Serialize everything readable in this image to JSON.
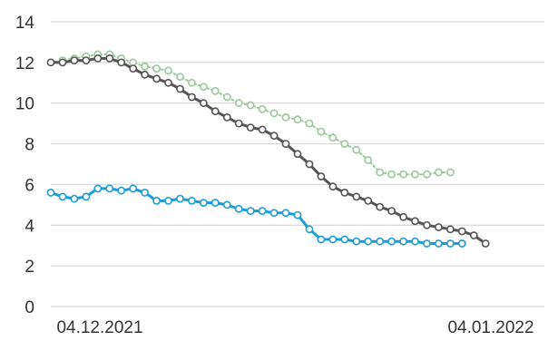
{
  "chart_data": {
    "type": "line",
    "title": "",
    "xlabel": "",
    "ylabel": "",
    "ylim": [
      0,
      14
    ],
    "yticks": [
      "0",
      "2",
      "4",
      "6",
      "8",
      "10",
      "12",
      "14"
    ],
    "xtick_labels": [
      "04.12.2021",
      "04.01.2022"
    ],
    "grid": true,
    "legend": "none",
    "x": [
      "2021-12-04",
      "2021-12-05",
      "2021-12-06",
      "2021-12-07",
      "2021-12-08",
      "2021-12-09",
      "2021-12-10",
      "2021-12-11",
      "2021-12-12",
      "2021-12-13",
      "2021-12-14",
      "2021-12-15",
      "2021-12-16",
      "2021-12-17",
      "2021-12-18",
      "2021-12-19",
      "2021-12-20",
      "2021-12-21",
      "2021-12-22",
      "2021-12-23",
      "2021-12-24",
      "2021-12-25",
      "2021-12-26",
      "2021-12-27",
      "2021-12-28",
      "2021-12-29",
      "2021-12-30",
      "2021-12-31",
      "2022-01-01",
      "2022-01-02",
      "2022-01-03",
      "2022-01-04",
      "2022-01-05",
      "2022-01-06",
      "2022-01-07",
      "2022-01-08",
      "2022-01-09",
      "2022-01-10",
      "2022-01-11",
      "2022-01-12",
      "2022-01-13",
      "2022-01-14",
      "2022-01-15"
    ],
    "series": [
      {
        "color": "#9bc89b",
        "marker_fill": "#ffffff",
        "style": "dotted",
        "values": [
          12.0,
          12.1,
          12.2,
          12.3,
          12.4,
          12.4,
          12.2,
          12.0,
          11.8,
          11.7,
          11.6,
          11.3,
          11.0,
          10.8,
          10.6,
          10.3,
          10.0,
          9.9,
          9.7,
          9.5,
          9.3,
          9.2,
          9.0,
          8.6,
          8.3,
          8.0,
          7.7,
          7.2,
          6.6,
          6.5,
          6.5,
          6.5,
          6.5,
          6.6,
          6.6,
          null,
          null,
          null,
          null,
          null,
          null,
          null,
          null
        ]
      },
      {
        "color": "#555555",
        "marker_fill": "#ffffff",
        "style": "solid",
        "values": [
          12.0,
          12.0,
          12.1,
          12.1,
          12.2,
          12.2,
          12.0,
          11.7,
          11.4,
          11.2,
          11.0,
          10.7,
          10.3,
          10.0,
          9.6,
          9.3,
          9.0,
          8.8,
          8.7,
          8.4,
          8.0,
          7.5,
          7.0,
          6.4,
          5.9,
          5.6,
          5.4,
          5.2,
          4.9,
          4.7,
          4.4,
          4.2,
          4.0,
          3.9,
          3.8,
          3.7,
          3.5,
          3.1,
          null,
          null,
          null,
          null,
          null
        ]
      },
      {
        "color": "#1a9cd8",
        "marker_fill": "#ffffff",
        "style": "solid",
        "values": [
          5.6,
          5.4,
          5.3,
          5.4,
          5.8,
          5.8,
          5.7,
          5.8,
          5.6,
          5.2,
          5.2,
          5.3,
          5.2,
          5.1,
          5.1,
          5.0,
          4.8,
          4.7,
          4.7,
          4.6,
          4.6,
          4.5,
          3.8,
          3.3,
          3.3,
          3.3,
          3.2,
          3.2,
          3.2,
          3.2,
          3.2,
          3.2,
          3.1,
          3.1,
          3.1,
          3.1,
          null,
          null,
          null,
          null,
          null,
          null,
          null
        ]
      }
    ]
  }
}
